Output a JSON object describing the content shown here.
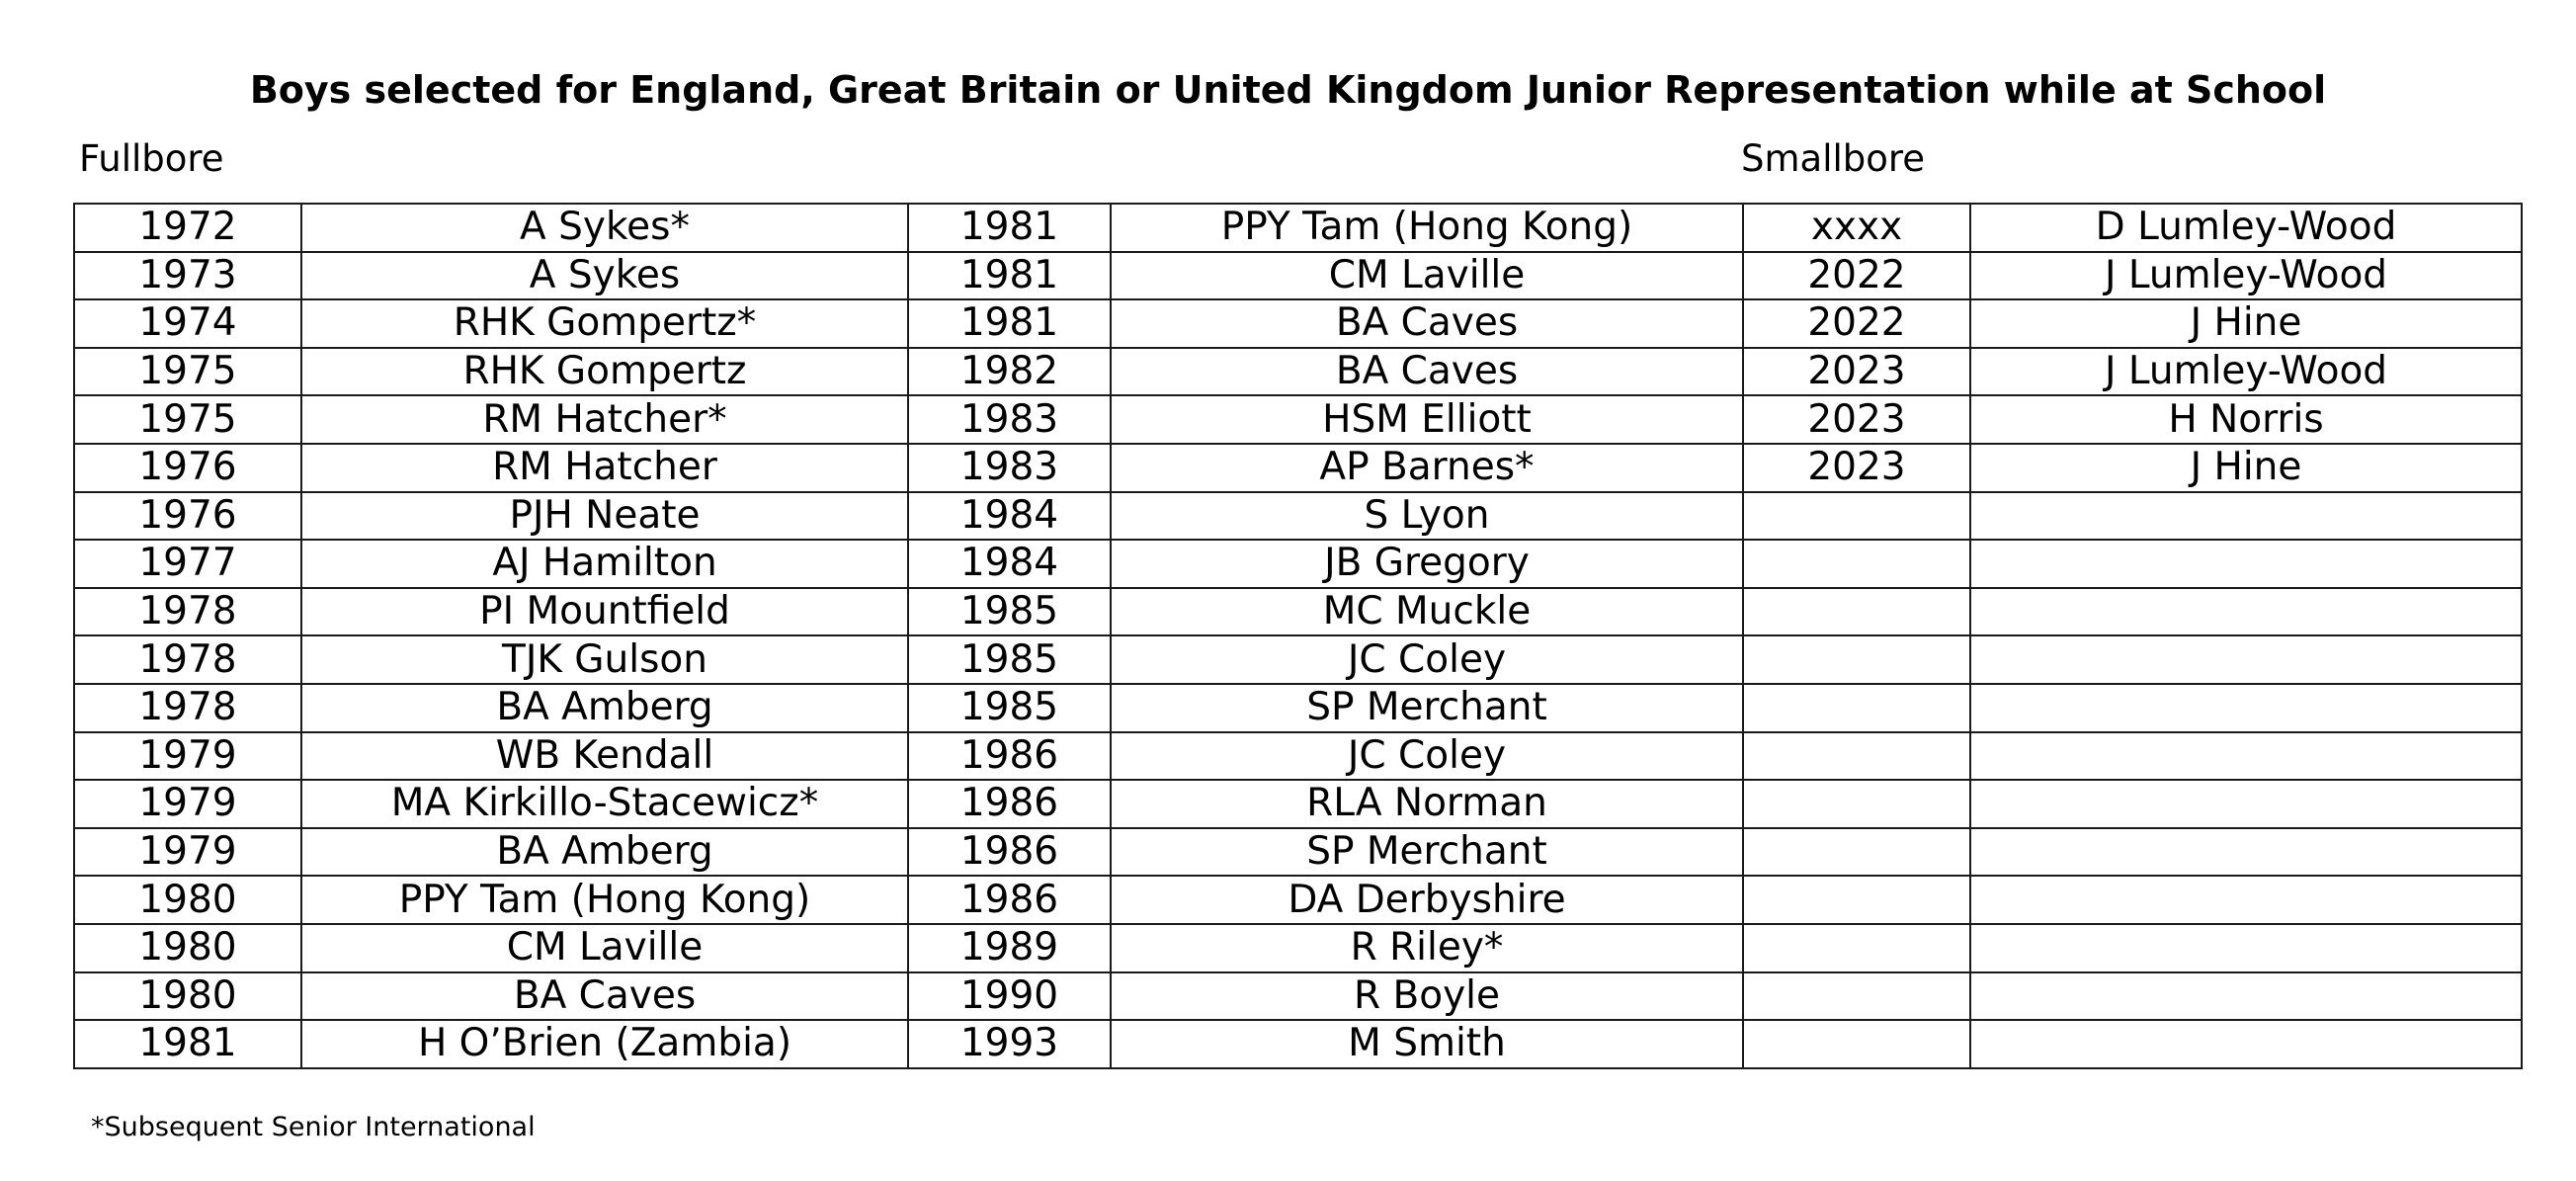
{
  "title": "Boys selected for England, Great Britain or United Kingdom Junior Representation while at School",
  "sections": {
    "fullbore": "Fullbore",
    "smallbore": "Smallbore"
  },
  "rows": [
    [
      "1972",
      "A Sykes*",
      "1981",
      "PPY Tam (Hong Kong)",
      "xxxx",
      "D Lumley-Wood"
    ],
    [
      "1973",
      "A Sykes",
      "1981",
      "CM Laville",
      "2022",
      "J Lumley-Wood"
    ],
    [
      "1974",
      "RHK Gompertz*",
      "1981",
      "BA Caves",
      "2022",
      "J Hine"
    ],
    [
      "1975",
      "RHK Gompertz",
      "1982",
      "BA Caves",
      "2023",
      "J Lumley-Wood"
    ],
    [
      "1975",
      "RM Hatcher*",
      "1983",
      "HSM Elliott",
      "2023",
      "H Norris"
    ],
    [
      "1976",
      "RM Hatcher",
      "1983",
      "AP Barnes*",
      "2023",
      "J Hine"
    ],
    [
      "1976",
      "PJH Neate",
      "1984",
      "S Lyon",
      "",
      ""
    ],
    [
      "1977",
      "AJ Hamilton",
      "1984",
      "JB Gregory",
      "",
      ""
    ],
    [
      "1978",
      "PI Mountfield",
      "1985",
      "MC Muckle",
      "",
      ""
    ],
    [
      "1978",
      "TJK Gulson",
      "1985",
      "JC Coley",
      "",
      ""
    ],
    [
      "1978",
      "BA Amberg",
      "1985",
      "SP Merchant",
      "",
      ""
    ],
    [
      "1979",
      "WB Kendall",
      "1986",
      "JC Coley",
      "",
      ""
    ],
    [
      "1979",
      "MA Kirkillo-Stacewicz*",
      "1986",
      "RLA Norman",
      "",
      ""
    ],
    [
      "1979",
      "BA Amberg",
      "1986",
      "SP Merchant",
      "",
      ""
    ],
    [
      "1980",
      "PPY Tam (Hong Kong)",
      "1986",
      "DA Derbyshire",
      "",
      ""
    ],
    [
      "1980",
      "CM Laville",
      "1989",
      "R Riley*",
      "",
      ""
    ],
    [
      "1980",
      "BA Caves",
      "1990",
      "R Boyle",
      "",
      ""
    ],
    [
      "1981",
      "H O’Brien (Zambia)",
      "1993",
      "M Smith",
      "",
      ""
    ]
  ],
  "footnote": "*Subsequent Senior International"
}
